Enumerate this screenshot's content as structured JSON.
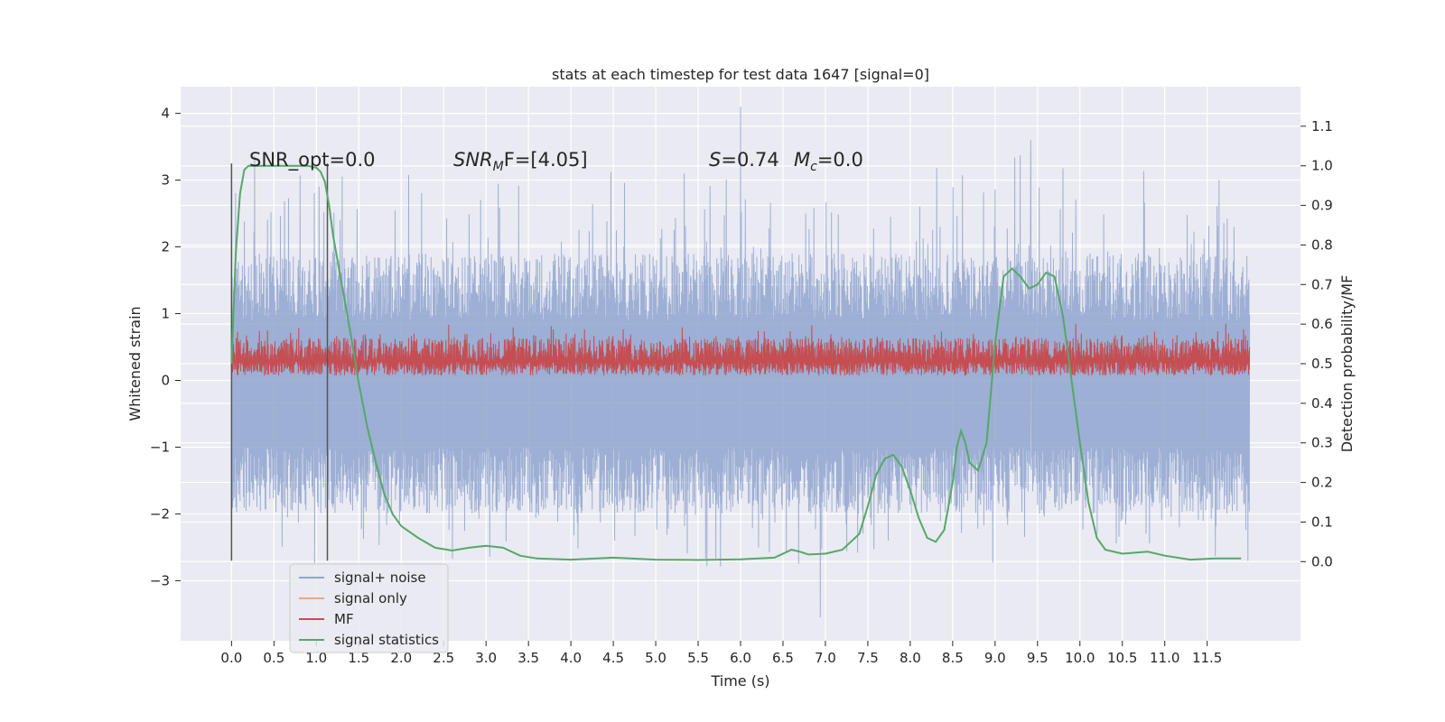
{
  "chart_data": {
    "type": "line",
    "title": "stats at each timestep for test data 1647 [signal=0]",
    "xlabel": "Time (s)",
    "ylabel_left": "Whitened strain",
    "ylabel_right": "Detection probability/MF",
    "xlim": [
      -0.6,
      12.6
    ],
    "ylim_left": [
      -3.9,
      4.4
    ],
    "ylim_right": [
      -0.2,
      1.2
    ],
    "x_ticks": [
      "0.0",
      "0.5",
      "1.0",
      "1.5",
      "2.0",
      "2.5",
      "3.0",
      "3.5",
      "4.0",
      "4.5",
      "5.0",
      "5.5",
      "6.0",
      "6.5",
      "7.0",
      "7.5",
      "8.0",
      "8.5",
      "9.0",
      "9.5",
      "10.0",
      "10.5",
      "11.0",
      "11.5"
    ],
    "y_ticks_left": [
      "−3",
      "−2",
      "−1",
      "0",
      "1",
      "2",
      "3",
      "4"
    ],
    "y_ticks_right": [
      "0.0",
      "0.1",
      "0.2",
      "0.3",
      "0.4",
      "0.5",
      "0.6",
      "0.7",
      "0.8",
      "0.9",
      "1.0",
      "1.1"
    ],
    "grid": true,
    "legend_position": "lower-left",
    "annotations": {
      "snr_opt": "SNR_opt=0.0",
      "snr_mf_base": "SNR",
      "snr_mf_sub": "M",
      "snr_mf_rest": "F=[4.05]",
      "s_sym": "S",
      "s_val": "=0.74",
      "mc_sym": "M",
      "mc_sub": "c",
      "mc_val": "=0.0"
    },
    "window_markers_x": [
      0.0,
      1.13
    ],
    "series": [
      {
        "name": "signal+ noise",
        "color": "#8fa5cf",
        "axis": "left",
        "x_range": [
          0.0,
          12.0
        ],
        "description_values": {
          "typical_envelope": [
            -1.5,
            1.8
          ],
          "max": 4.1,
          "min": -3.55
        }
      },
      {
        "name": "signal only",
        "color": "#e8a889",
        "axis": "left",
        "values": []
      },
      {
        "name": "MF",
        "color": "#c44e52",
        "axis": "right",
        "x_range": [
          0.0,
          12.0
        ],
        "description_values": {
          "mean": 0.505,
          "range": [
            0.465,
            0.6
          ]
        }
      },
      {
        "name": "signal statistics",
        "color": "#55a868",
        "axis": "right",
        "x": [
          0.0,
          0.05,
          0.1,
          0.15,
          0.2,
          0.3,
          0.5,
          0.7,
          0.9,
          1.0,
          1.05,
          1.1,
          1.15,
          1.2,
          1.3,
          1.4,
          1.5,
          1.6,
          1.7,
          1.8,
          1.9,
          2.0,
          2.2,
          2.4,
          2.6,
          2.8,
          3.0,
          3.2,
          3.4,
          3.6,
          4.0,
          4.5,
          5.0,
          5.5,
          6.0,
          6.4,
          6.6,
          6.7,
          6.8,
          7.0,
          7.2,
          7.4,
          7.5,
          7.6,
          7.7,
          7.8,
          7.9,
          8.0,
          8.1,
          8.2,
          8.3,
          8.4,
          8.5,
          8.55,
          8.6,
          8.65,
          8.7,
          8.8,
          8.9,
          9.0,
          9.1,
          9.2,
          9.3,
          9.4,
          9.5,
          9.6,
          9.7,
          9.8,
          9.9,
          10.0,
          10.1,
          10.2,
          10.3,
          10.5,
          10.8,
          11.0,
          11.3,
          11.6,
          11.9
        ],
        "y": [
          0.5,
          0.78,
          0.93,
          0.99,
          1.0,
          1.0,
          1.0,
          1.0,
          1.0,
          0.995,
          0.985,
          0.96,
          0.9,
          0.82,
          0.7,
          0.58,
          0.45,
          0.34,
          0.25,
          0.17,
          0.12,
          0.09,
          0.06,
          0.035,
          0.028,
          0.035,
          0.04,
          0.035,
          0.015,
          0.008,
          0.005,
          0.01,
          0.005,
          0.004,
          0.006,
          0.01,
          0.03,
          0.025,
          0.018,
          0.02,
          0.03,
          0.07,
          0.14,
          0.22,
          0.26,
          0.27,
          0.24,
          0.18,
          0.11,
          0.06,
          0.05,
          0.08,
          0.2,
          0.29,
          0.33,
          0.3,
          0.25,
          0.23,
          0.3,
          0.55,
          0.72,
          0.74,
          0.72,
          0.69,
          0.7,
          0.73,
          0.72,
          0.62,
          0.46,
          0.3,
          0.15,
          0.06,
          0.03,
          0.02,
          0.025,
          0.015,
          0.005,
          0.008,
          0.008
        ]
      }
    ]
  }
}
